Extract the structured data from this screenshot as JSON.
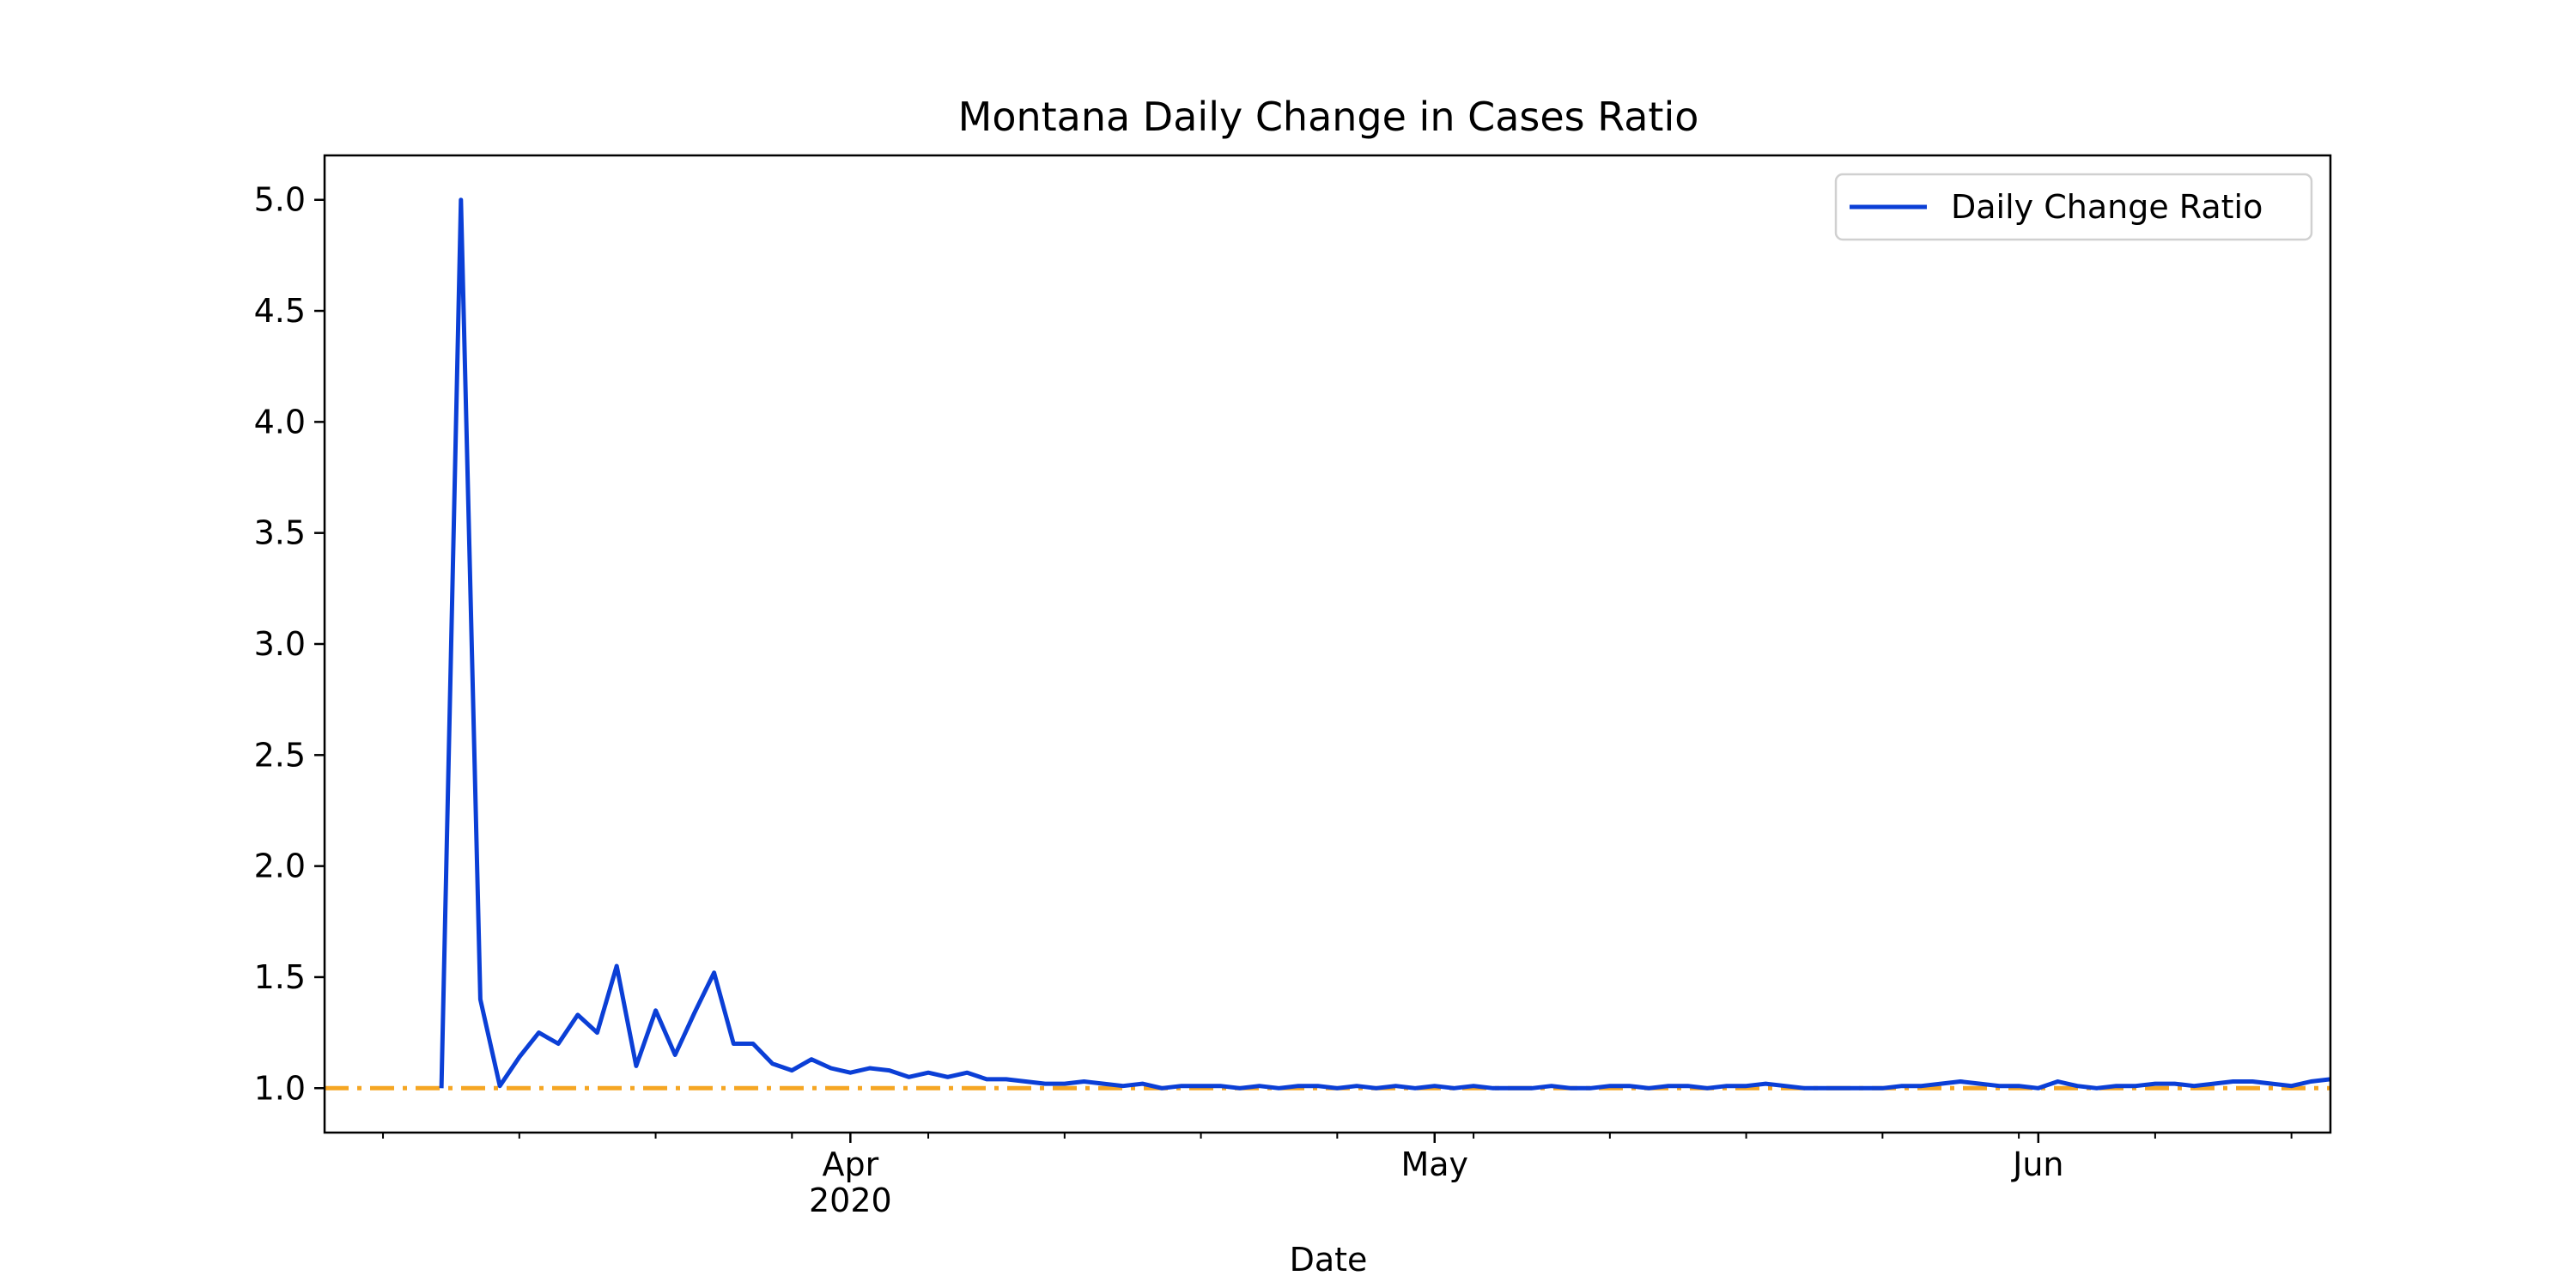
{
  "chart_data": {
    "type": "line",
    "title": "Montana Daily Change in Cases Ratio",
    "xlabel": "Date",
    "ylabel": "",
    "xlim": [
      "2020-03-05",
      "2020-06-16"
    ],
    "ylim": [
      0.8,
      5.2
    ],
    "yticks": [
      1.0,
      1.5,
      2.0,
      2.5,
      3.0,
      3.5,
      4.0,
      4.5,
      5.0
    ],
    "ytick_labels": [
      "1.0",
      "1.5",
      "2.0",
      "2.5",
      "3.0",
      "3.5",
      "4.0",
      "4.5",
      "5.0"
    ],
    "xticks_major": [
      {
        "date": "2020-04-01",
        "label": "Apr",
        "sublabel": "2020"
      },
      {
        "date": "2020-05-01",
        "label": "May",
        "sublabel": ""
      },
      {
        "date": "2020-06-01",
        "label": "Jun",
        "sublabel": ""
      }
    ],
    "xticks_minor": [
      "2020-03-08",
      "2020-03-15",
      "2020-03-22",
      "2020-03-29",
      "2020-04-05",
      "2020-04-12",
      "2020-04-19",
      "2020-04-26",
      "2020-05-03",
      "2020-05-10",
      "2020-05-17",
      "2020-05-24",
      "2020-05-31",
      "2020-06-07",
      "2020-06-14"
    ],
    "legend": {
      "position": "top-right"
    },
    "grid": false,
    "reference_line": {
      "y": 1.0,
      "color": "#f5a623",
      "style": "dash-dot"
    },
    "series": [
      {
        "name": "Daily Change Ratio",
        "color": "#0b3fd6",
        "x": [
          "2020-03-11",
          "2020-03-12",
          "2020-03-13",
          "2020-03-14",
          "2020-03-15",
          "2020-03-16",
          "2020-03-17",
          "2020-03-18",
          "2020-03-19",
          "2020-03-20",
          "2020-03-21",
          "2020-03-22",
          "2020-03-23",
          "2020-03-24",
          "2020-03-25",
          "2020-03-26",
          "2020-03-27",
          "2020-03-28",
          "2020-03-29",
          "2020-03-30",
          "2020-03-31",
          "2020-04-01",
          "2020-04-02",
          "2020-04-03",
          "2020-04-04",
          "2020-04-05",
          "2020-04-06",
          "2020-04-07",
          "2020-04-08",
          "2020-04-09",
          "2020-04-10",
          "2020-04-11",
          "2020-04-12",
          "2020-04-13",
          "2020-04-14",
          "2020-04-15",
          "2020-04-16",
          "2020-04-17",
          "2020-04-18",
          "2020-04-19",
          "2020-04-20",
          "2020-04-21",
          "2020-04-22",
          "2020-04-23",
          "2020-04-24",
          "2020-04-25",
          "2020-04-26",
          "2020-04-27",
          "2020-04-28",
          "2020-04-29",
          "2020-04-30",
          "2020-05-01",
          "2020-05-02",
          "2020-05-03",
          "2020-05-04",
          "2020-05-05",
          "2020-05-06",
          "2020-05-07",
          "2020-05-08",
          "2020-05-09",
          "2020-05-10",
          "2020-05-11",
          "2020-05-12",
          "2020-05-13",
          "2020-05-14",
          "2020-05-15",
          "2020-05-16",
          "2020-05-17",
          "2020-05-18",
          "2020-05-19",
          "2020-05-20",
          "2020-05-21",
          "2020-05-22",
          "2020-05-23",
          "2020-05-24",
          "2020-05-25",
          "2020-05-26",
          "2020-05-27",
          "2020-05-28",
          "2020-05-29",
          "2020-05-30",
          "2020-05-31",
          "2020-06-01",
          "2020-06-02",
          "2020-06-03",
          "2020-06-04",
          "2020-06-05",
          "2020-06-06",
          "2020-06-07",
          "2020-06-08",
          "2020-06-09",
          "2020-06-10",
          "2020-06-11",
          "2020-06-12",
          "2020-06-13",
          "2020-06-14",
          "2020-06-15",
          "2020-06-16"
        ],
        "values": [
          1.0,
          5.0,
          1.4,
          1.01,
          1.14,
          1.25,
          1.2,
          1.33,
          1.25,
          1.55,
          1.1,
          1.35,
          1.15,
          1.34,
          1.52,
          1.2,
          1.2,
          1.11,
          1.08,
          1.13,
          1.09,
          1.07,
          1.09,
          1.08,
          1.05,
          1.07,
          1.05,
          1.07,
          1.04,
          1.04,
          1.03,
          1.02,
          1.02,
          1.03,
          1.02,
          1.01,
          1.02,
          1.0,
          1.01,
          1.01,
          1.01,
          1.0,
          1.01,
          1.0,
          1.01,
          1.01,
          1.0,
          1.01,
          1.0,
          1.01,
          1.0,
          1.01,
          1.0,
          1.01,
          1.0,
          1.0,
          1.0,
          1.01,
          1.0,
          1.0,
          1.01,
          1.01,
          1.0,
          1.01,
          1.01,
          1.0,
          1.01,
          1.01,
          1.02,
          1.01,
          1.0,
          1.0,
          1.0,
          1.0,
          1.0,
          1.01,
          1.01,
          1.02,
          1.03,
          1.02,
          1.01,
          1.01,
          1.0,
          1.03,
          1.01,
          1.0,
          1.01,
          1.01,
          1.02,
          1.02,
          1.01,
          1.02,
          1.03,
          1.03,
          1.02,
          1.01,
          1.03,
          1.04
        ]
      }
    ]
  }
}
